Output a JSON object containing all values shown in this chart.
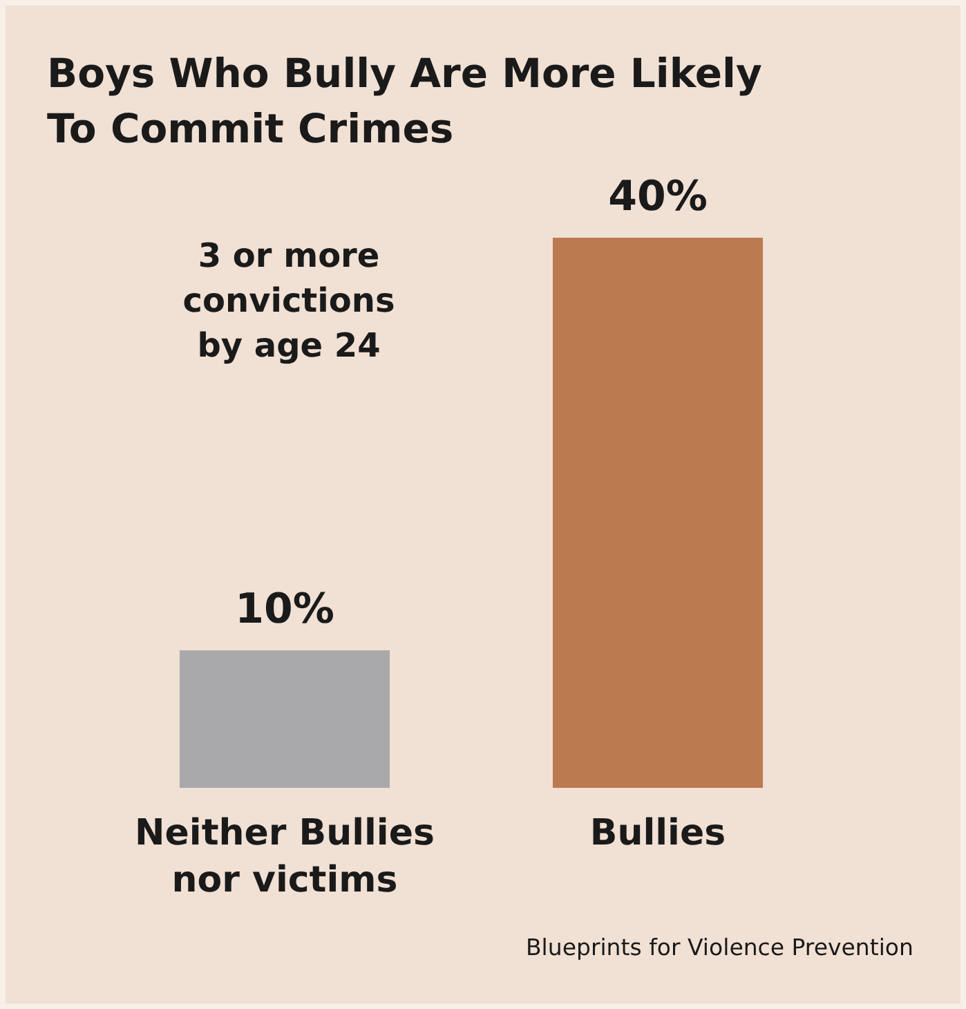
{
  "chart_data": {
    "type": "bar",
    "title": "Boys Who Bully Are More Likely To Commit Crimes",
    "categories": [
      "Neither Bullies nor victims",
      "Bullies"
    ],
    "values": [
      10,
      40
    ],
    "colors": [
      "#a9a9ab",
      "#bc7a50"
    ],
    "value_labels": [
      "10%",
      "40%"
    ],
    "annotations": [
      "3 or more convictions by age 24",
      "Blueprints for Violence Prevention"
    ]
  }
}
